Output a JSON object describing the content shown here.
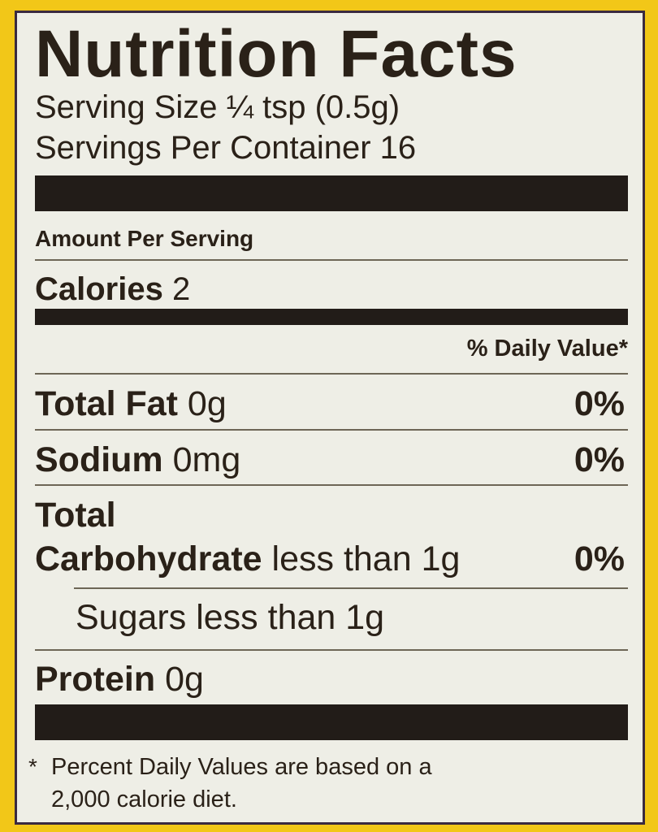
{
  "label": {
    "title": "Nutrition Facts",
    "serving_size": "Serving Size ¼ tsp (0.5g)",
    "servings_per_container": "Servings Per Container 16",
    "amount_per_serving": "Amount Per Serving",
    "calories": {
      "label": "Calories",
      "value": "2"
    },
    "daily_value_header": "% Daily Value*",
    "nutrients": [
      {
        "name": "Total Fat",
        "amount": "0g",
        "dv": "0%"
      },
      {
        "name": "Sodium",
        "amount": "0mg",
        "dv": "0%"
      },
      {
        "name_line1": "Total",
        "name_line2": "Carbohydrate",
        "amount": "less than 1g",
        "dv": "0%"
      },
      {
        "name": "Sugars",
        "amount": "less than 1g"
      },
      {
        "name": "Protein",
        "amount": "0g"
      }
    ],
    "footnote_mark": "*",
    "footnote_line1": "Percent Daily Values are based on a",
    "footnote_line2": "2,000 calorie diet."
  },
  "colors": {
    "background": "#f2c718",
    "panel": "#eeeee6",
    "ink": "#2a2118"
  }
}
